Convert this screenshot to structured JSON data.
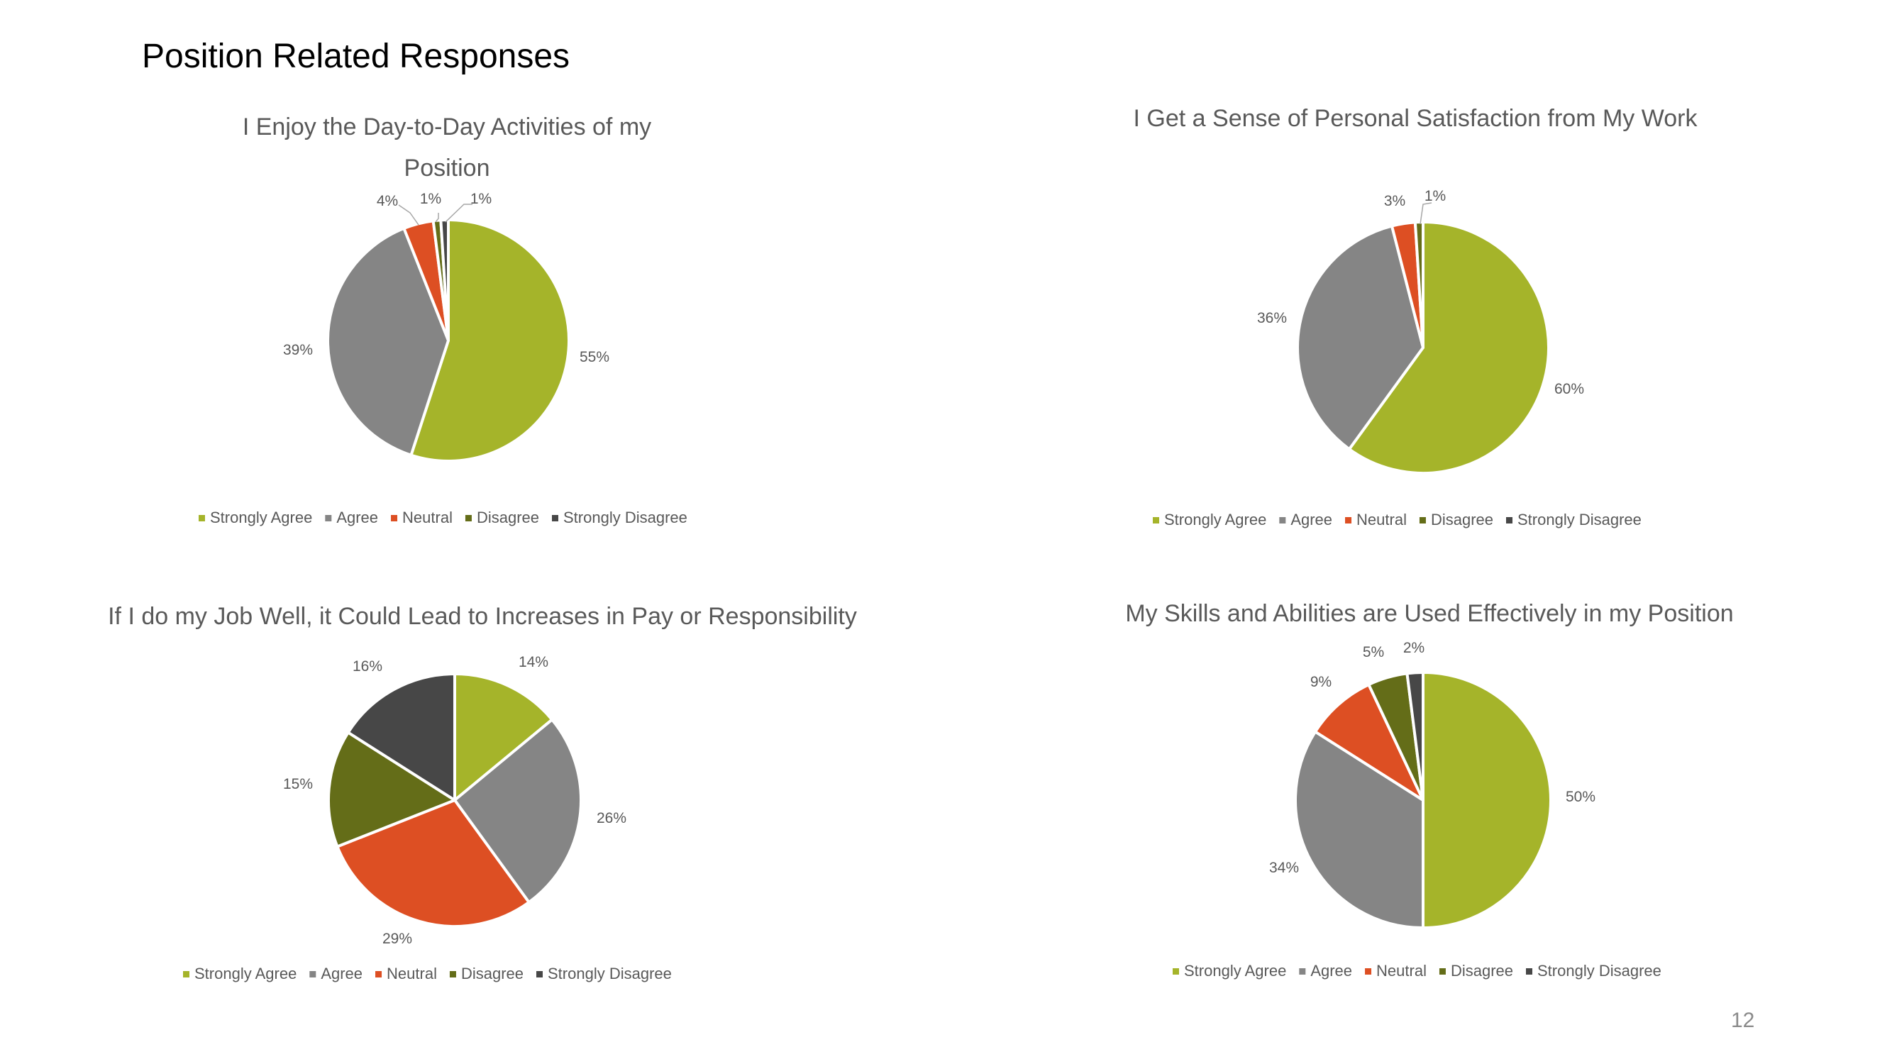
{
  "page": {
    "title": "Position Related Responses",
    "page_number": "12"
  },
  "legend_labels": [
    "Strongly Agree",
    "Agree",
    "Neutral",
    "Disagree",
    "Strongly Disagree"
  ],
  "colors": {
    "strongly_agree": "#A5B42A",
    "agree": "#858585",
    "neutral": "#DD4F23",
    "disagree": "#646D18",
    "strongly_disagree": "#474747",
    "text": "#595959",
    "slice_border": "#FFFFFF"
  },
  "chart_data": [
    {
      "type": "pie",
      "title_lines": [
        "I Enjoy the Day-to-Day Activities of my",
        "Position"
      ],
      "categories": [
        "Strongly Agree",
        "Agree",
        "Neutral",
        "Disagree",
        "Strongly Disagree"
      ],
      "values": [
        55,
        39,
        4,
        1,
        1
      ],
      "data_labels": [
        "55%",
        "39%",
        "4%",
        "1%",
        "1%"
      ],
      "legend_position": "bottom"
    },
    {
      "type": "pie",
      "title_lines": [
        "I Get a Sense of Personal Satisfaction from My Work"
      ],
      "categories": [
        "Strongly Agree",
        "Agree",
        "Neutral",
        "Disagree",
        "Strongly Disagree"
      ],
      "values": [
        60,
        36,
        3,
        1,
        0
      ],
      "data_labels": [
        "60%",
        "36%",
        "3%",
        "1%",
        ""
      ],
      "legend_position": "bottom"
    },
    {
      "type": "pie",
      "title_lines": [
        "If I do my Job Well, it Could Lead to Increases in Pay or Responsibility"
      ],
      "categories": [
        "Strongly Agree",
        "Agree",
        "Neutral",
        "Disagree",
        "Strongly Disagree"
      ],
      "values": [
        14,
        26,
        29,
        15,
        16
      ],
      "data_labels": [
        "14%",
        "26%",
        "29%",
        "15%",
        "16%"
      ],
      "legend_position": "bottom"
    },
    {
      "type": "pie",
      "title_lines": [
        "My Skills and Abilities are Used Effectively in my Position"
      ],
      "categories": [
        "Strongly Agree",
        "Agree",
        "Neutral",
        "Disagree",
        "Strongly Disagree"
      ],
      "values": [
        50,
        34,
        9,
        5,
        2
      ],
      "data_labels": [
        "50%",
        "34%",
        "9%",
        "5%",
        "2%"
      ],
      "legend_position": "bottom"
    }
  ]
}
